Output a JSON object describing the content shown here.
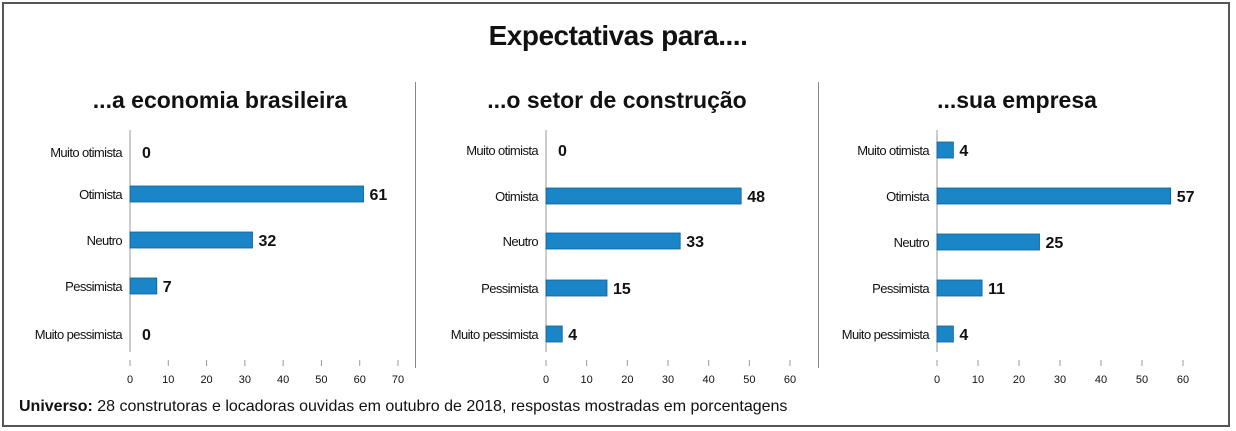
{
  "title": "Expectativas para....",
  "footnote": {
    "label": "Universo:",
    "text": " 28 construtoras e locadoras ouvidas em outubro de 2018, respostas mostradas em porcentagens"
  },
  "colors": {
    "bar": "#1a86c8"
  },
  "chart_data": [
    {
      "type": "bar",
      "orientation": "horizontal",
      "title": "...a economia brasileira",
      "categories": [
        "Muito otimista",
        "Otimista",
        "Neutro",
        "Pessimista",
        "Muito pessimista"
      ],
      "values": [
        0,
        61,
        32,
        7,
        0
      ],
      "xlim": [
        0,
        70
      ],
      "xticks": [
        0,
        10,
        20,
        30,
        40,
        50,
        60,
        70
      ]
    },
    {
      "type": "bar",
      "orientation": "horizontal",
      "title": "...o setor de construção",
      "categories": [
        "Muito otimista",
        "Otimista",
        "Neutro",
        "Pessimista",
        "Muito pessimista"
      ],
      "values": [
        0,
        48,
        33,
        15,
        4
      ],
      "xlim": [
        0,
        60
      ],
      "xticks": [
        0,
        10,
        20,
        30,
        40,
        50,
        60
      ]
    },
    {
      "type": "bar",
      "orientation": "horizontal",
      "title": "...sua empresa",
      "categories": [
        "Muito otimista",
        "Otimista",
        "Neutro",
        "Pessimista",
        "Muito pessimista"
      ],
      "values": [
        4,
        57,
        25,
        11,
        4
      ],
      "xlim": [
        0,
        60
      ],
      "xticks": [
        0,
        10,
        20,
        30,
        40,
        50,
        60
      ]
    }
  ]
}
